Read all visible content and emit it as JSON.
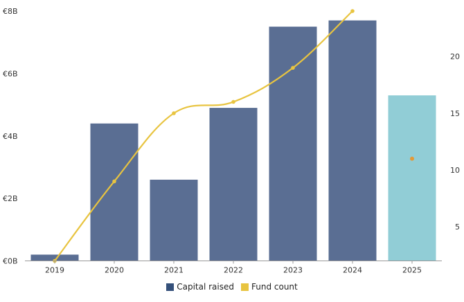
{
  "chart_data": {
    "type": "bar",
    "categories": [
      "2019",
      "2020",
      "2021",
      "2022",
      "2023",
      "2024",
      "2025"
    ],
    "series": [
      {
        "name": "Capital raised",
        "type": "bar",
        "axis": "left",
        "values": [
          0.2,
          4.4,
          2.6,
          4.9,
          7.5,
          7.7,
          5.3
        ],
        "color": "#5a6e93",
        "highlight": {
          "category": "2025",
          "color": "#91cdd6"
        }
      },
      {
        "name": "Fund count",
        "type": "line",
        "axis": "right",
        "values": [
          2,
          9,
          15,
          16,
          19,
          24,
          11
        ],
        "color": "#e8c440",
        "connected_through": "2024",
        "standalone_point": {
          "category": "2025",
          "value": 11,
          "color": "#e39a38"
        }
      }
    ],
    "y_left": {
      "ticks": [
        "€0B",
        "€2B",
        "€4B",
        "€6B",
        "€8B"
      ],
      "values": [
        0,
        2,
        4,
        6,
        8
      ],
      "ylim": [
        0,
        8
      ]
    },
    "y_right": {
      "ticks": [
        "5",
        "10",
        "15",
        "20"
      ],
      "values": [
        5,
        10,
        15,
        20
      ],
      "ylim": [
        2,
        24
      ]
    },
    "legend_position": "bottom-center",
    "grid": false
  }
}
